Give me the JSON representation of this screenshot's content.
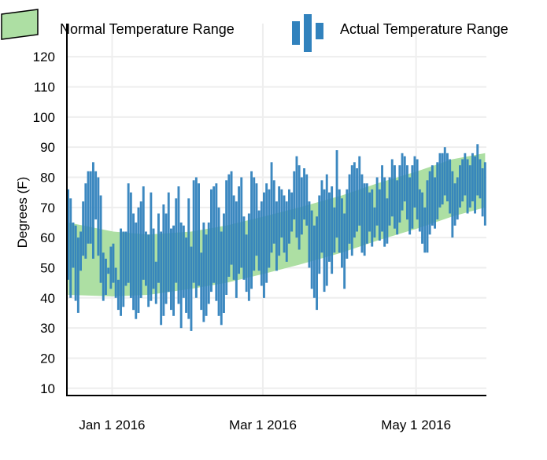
{
  "chart_data": {
    "type": "bar",
    "title": "",
    "xlabel": "",
    "ylabel": "Degrees (F)",
    "ylim": [
      7.6,
      131
    ],
    "xlim": [
      "2015-12-14",
      "2016-05-28"
    ],
    "grid": true,
    "legend_position": "top",
    "y_ticks": [
      "10",
      "20",
      "30",
      "40",
      "50",
      "60",
      "70",
      "80",
      "90",
      "100",
      "110",
      "120"
    ],
    "x_ticks": [
      {
        "date": "2016-01-01",
        "label": "Jan 1 2016"
      },
      {
        "date": "2016-03-01",
        "label": "Mar 1 2016"
      },
      {
        "date": "2016-05-01",
        "label": "May 1 2016"
      }
    ],
    "colors": {
      "normal": "#addfa3",
      "actual": "#3182bd",
      "grid": "#eeeeee",
      "axis": "#000000"
    },
    "normal_range": {
      "name": "Normal Temperature Range",
      "points": [
        [
          "2015-12-14",
          41,
          65
        ],
        [
          "2016-01-01",
          40.5,
          62
        ],
        [
          "2016-01-15",
          41,
          61
        ],
        [
          "2016-02-01",
          43,
          62
        ],
        [
          "2016-02-15",
          45,
          64
        ],
        [
          "2016-03-01",
          48,
          67
        ],
        [
          "2016-03-15",
          51,
          70
        ],
        [
          "2016-04-01",
          55,
          74
        ],
        [
          "2016-04-15",
          59,
          78
        ],
        [
          "2016-05-01",
          63,
          82
        ],
        [
          "2016-05-15",
          67,
          86
        ],
        [
          "2016-05-28",
          70,
          88
        ]
      ]
    },
    "actual_range": {
      "name": "Actual Temperature Range",
      "points": [
        [
          "2015-12-14",
          46,
          76
        ],
        [
          "2015-12-15",
          40,
          73
        ],
        [
          "2015-12-16",
          50,
          65
        ],
        [
          "2015-12-17",
          39,
          64
        ],
        [
          "2015-12-18",
          35,
          60
        ],
        [
          "2015-12-19",
          49,
          62
        ],
        [
          "2015-12-20",
          54,
          72
        ],
        [
          "2015-12-21",
          53,
          78
        ],
        [
          "2015-12-22",
          58,
          82
        ],
        [
          "2015-12-23",
          58,
          82
        ],
        [
          "2015-12-24",
          53,
          85
        ],
        [
          "2015-12-25",
          66,
          82
        ],
        [
          "2015-12-26",
          54,
          80
        ],
        [
          "2015-12-27",
          45,
          74
        ],
        [
          "2015-12-28",
          39,
          55
        ],
        [
          "2015-12-29",
          41,
          53
        ],
        [
          "2015-12-30",
          48,
          50
        ],
        [
          "2015-12-31",
          43,
          57
        ],
        [
          "2016-01-01",
          45,
          58
        ],
        [
          "2016-01-02",
          40,
          50
        ],
        [
          "2016-01-03",
          36,
          46
        ],
        [
          "2016-01-04",
          34,
          63
        ],
        [
          "2016-01-05",
          37,
          62
        ],
        [
          "2016-01-06",
          44,
          62
        ],
        [
          "2016-01-07",
          45,
          78
        ],
        [
          "2016-01-08",
          40,
          75
        ],
        [
          "2016-01-09",
          36,
          68
        ],
        [
          "2016-01-10",
          33,
          65
        ],
        [
          "2016-01-11",
          35,
          70
        ],
        [
          "2016-01-12",
          40,
          72
        ],
        [
          "2016-01-13",
          46,
          77
        ],
        [
          "2016-01-14",
          44,
          62
        ],
        [
          "2016-01-15",
          37,
          61
        ],
        [
          "2016-01-16",
          39,
          75
        ],
        [
          "2016-01-17",
          43,
          63
        ],
        [
          "2016-01-18",
          38,
          52
        ],
        [
          "2016-01-19",
          45,
          68
        ],
        [
          "2016-01-20",
          31,
          62
        ],
        [
          "2016-01-21",
          34,
          71
        ],
        [
          "2016-01-22",
          38,
          68
        ],
        [
          "2016-01-23",
          42,
          75
        ],
        [
          "2016-01-24",
          36,
          63
        ],
        [
          "2016-01-25",
          34,
          64
        ],
        [
          "2016-01-26",
          45,
          73
        ],
        [
          "2016-01-27",
          38,
          77
        ],
        [
          "2016-01-28",
          30,
          65
        ],
        [
          "2016-01-29",
          40,
          64
        ],
        [
          "2016-01-30",
          35,
          60
        ],
        [
          "2016-01-31",
          33,
          73
        ],
        [
          "2016-02-01",
          29,
          57
        ],
        [
          "2016-02-02",
          45,
          79
        ],
        [
          "2016-02-03",
          40,
          80
        ],
        [
          "2016-02-04",
          44,
          78
        ],
        [
          "2016-02-05",
          36,
          55
        ],
        [
          "2016-02-06",
          32,
          65
        ],
        [
          "2016-02-07",
          34,
          61
        ],
        [
          "2016-02-08",
          38,
          65
        ],
        [
          "2016-02-09",
          42,
          76
        ],
        [
          "2016-02-10",
          45,
          77
        ],
        [
          "2016-02-11",
          39,
          78
        ],
        [
          "2016-02-12",
          34,
          70
        ],
        [
          "2016-02-13",
          31,
          62
        ],
        [
          "2016-02-14",
          35,
          68
        ],
        [
          "2016-02-15",
          41,
          79
        ],
        [
          "2016-02-16",
          47,
          81
        ],
        [
          "2016-02-17",
          51,
          82
        ],
        [
          "2016-02-18",
          46,
          74
        ],
        [
          "2016-02-19",
          40,
          72
        ],
        [
          "2016-02-20",
          48,
          77
        ],
        [
          "2016-02-21",
          50,
          80
        ],
        [
          "2016-02-22",
          46,
          67
        ],
        [
          "2016-02-23",
          42,
          61
        ],
        [
          "2016-02-24",
          39,
          68
        ],
        [
          "2016-02-25",
          43,
          82
        ],
        [
          "2016-02-26",
          49,
          80
        ],
        [
          "2016-02-27",
          54,
          78
        ],
        [
          "2016-02-28",
          49,
          69
        ],
        [
          "2016-02-29",
          44,
          72
        ],
        [
          "2016-03-01",
          40,
          75
        ],
        [
          "2016-03-02",
          45,
          78
        ],
        [
          "2016-03-03",
          50,
          76
        ],
        [
          "2016-03-04",
          55,
          85
        ],
        [
          "2016-03-05",
          58,
          79
        ],
        [
          "2016-03-06",
          49,
          72
        ],
        [
          "2016-03-07",
          54,
          77
        ],
        [
          "2016-03-08",
          60,
          76
        ],
        [
          "2016-03-09",
          55,
          74
        ],
        [
          "2016-03-10",
          52,
          72
        ],
        [
          "2016-03-11",
          58,
          76
        ],
        [
          "2016-03-12",
          62,
          75
        ],
        [
          "2016-03-13",
          66,
          82
        ],
        [
          "2016-03-14",
          60,
          87
        ],
        [
          "2016-03-15",
          56,
          84
        ],
        [
          "2016-03-16",
          61,
          80
        ],
        [
          "2016-03-17",
          66,
          83
        ],
        [
          "2016-03-18",
          64,
          81
        ],
        [
          "2016-03-19",
          50,
          72
        ],
        [
          "2016-03-20",
          43,
          69
        ],
        [
          "2016-03-21",
          40,
          64
        ],
        [
          "2016-03-22",
          36,
          67
        ],
        [
          "2016-03-23",
          48,
          74
        ],
        [
          "2016-03-24",
          55,
          79
        ],
        [
          "2016-03-25",
          42,
          76
        ],
        [
          "2016-03-26",
          44,
          81
        ],
        [
          "2016-03-27",
          52,
          75
        ],
        [
          "2016-03-28",
          48,
          77
        ],
        [
          "2016-03-29",
          55,
          70
        ],
        [
          "2016-03-30",
          60,
          89
        ],
        [
          "2016-03-31",
          55,
          76
        ],
        [
          "2016-04-01",
          50,
          73
        ],
        [
          "2016-04-02",
          43,
          68
        ],
        [
          "2016-04-03",
          53,
          76
        ],
        [
          "2016-04-04",
          58,
          81
        ],
        [
          "2016-04-05",
          54,
          84
        ],
        [
          "2016-04-06",
          60,
          85
        ],
        [
          "2016-04-07",
          62,
          83
        ],
        [
          "2016-04-08",
          64,
          87
        ],
        [
          "2016-04-09",
          55,
          81
        ],
        [
          "2016-04-10",
          54,
          78
        ],
        [
          "2016-04-11",
          58,
          78
        ],
        [
          "2016-04-12",
          62,
          75
        ],
        [
          "2016-04-13",
          57,
          76
        ],
        [
          "2016-04-14",
          60,
          70
        ],
        [
          "2016-04-15",
          64,
          80
        ],
        [
          "2016-04-16",
          59,
          76
        ],
        [
          "2016-04-17",
          62,
          84
        ],
        [
          "2016-04-18",
          57,
          80
        ],
        [
          "2016-04-19",
          58,
          73
        ],
        [
          "2016-04-20",
          64,
          80
        ],
        [
          "2016-04-21",
          67,
          86
        ],
        [
          "2016-04-22",
          63,
          84
        ],
        [
          "2016-04-23",
          61,
          79
        ],
        [
          "2016-04-24",
          65,
          84
        ],
        [
          "2016-04-25",
          69,
          88
        ],
        [
          "2016-04-26",
          72,
          87
        ],
        [
          "2016-04-27",
          66,
          84
        ],
        [
          "2016-04-28",
          61,
          80
        ],
        [
          "2016-04-29",
          63,
          84
        ],
        [
          "2016-04-30",
          70,
          87
        ],
        [
          "2016-05-01",
          66,
          86
        ],
        [
          "2016-05-02",
          62,
          76
        ],
        [
          "2016-05-03",
          58,
          75
        ],
        [
          "2016-05-04",
          55,
          70
        ],
        [
          "2016-05-05",
          55,
          79
        ],
        [
          "2016-05-06",
          61,
          82
        ],
        [
          "2016-05-07",
          64,
          84
        ],
        [
          "2016-05-08",
          63,
          80
        ],
        [
          "2016-05-09",
          66,
          85
        ],
        [
          "2016-05-10",
          70,
          88
        ],
        [
          "2016-05-11",
          71,
          88
        ],
        [
          "2016-05-12",
          74,
          90
        ],
        [
          "2016-05-13",
          72,
          88
        ],
        [
          "2016-05-14",
          68,
          86
        ],
        [
          "2016-05-15",
          60,
          82
        ],
        [
          "2016-05-16",
          64,
          78
        ],
        [
          "2016-05-17",
          66,
          80
        ],
        [
          "2016-05-18",
          70,
          84
        ],
        [
          "2016-05-19",
          72,
          86
        ],
        [
          "2016-05-20",
          74,
          88
        ],
        [
          "2016-05-21",
          68,
          86
        ],
        [
          "2016-05-22",
          70,
          84
        ],
        [
          "2016-05-23",
          72,
          88
        ],
        [
          "2016-05-24",
          68,
          87
        ],
        [
          "2016-05-25",
          74,
          91
        ],
        [
          "2016-05-26",
          73,
          86
        ],
        [
          "2016-05-27",
          67,
          83
        ],
        [
          "2016-05-28",
          64,
          85
        ]
      ]
    }
  }
}
